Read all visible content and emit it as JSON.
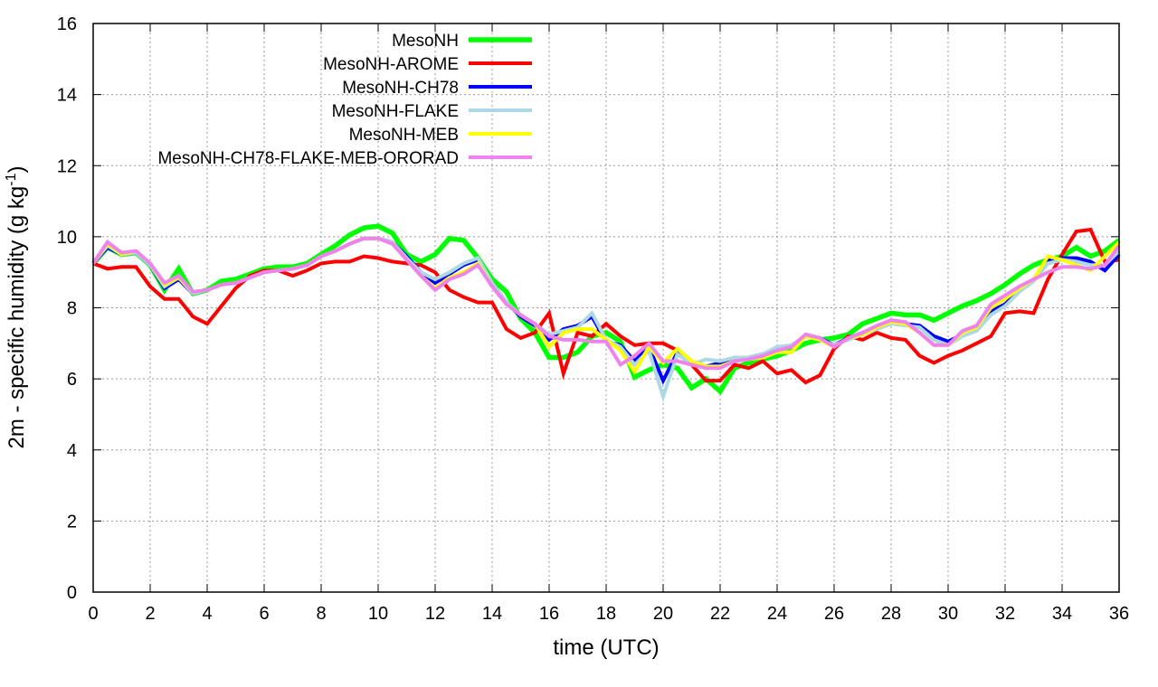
{
  "chart_data": {
    "type": "line",
    "title": "",
    "xlabel": "time (UTC)",
    "ylabel": {
      "main": "2m - specific humidity (g kg",
      "sup": "-1",
      "end": ")"
    },
    "xlim": [
      0,
      36
    ],
    "ylim": [
      0,
      16
    ],
    "xticks": [
      0,
      2,
      4,
      6,
      8,
      10,
      12,
      14,
      16,
      18,
      20,
      22,
      24,
      26,
      28,
      30,
      32,
      34,
      36
    ],
    "yticks": [
      0,
      2,
      4,
      6,
      8,
      10,
      12,
      14,
      16
    ],
    "grid": true,
    "legend_placement": "top-left",
    "x_start": 0,
    "x_step": 0.5,
    "series": [
      {
        "name": "MesoNH",
        "color": "#00ff00",
        "values": [
          9.25,
          9.7,
          9.5,
          9.55,
          9.2,
          8.5,
          9.1,
          8.4,
          8.5,
          8.75,
          8.8,
          8.95,
          9.1,
          9.15,
          9.15,
          9.25,
          9.5,
          9.75,
          10.05,
          10.25,
          10.3,
          10.1,
          9.5,
          9.3,
          9.5,
          9.95,
          9.9,
          9.4,
          8.8,
          8.45,
          7.7,
          7.3,
          6.6,
          6.6,
          6.75,
          7.2,
          7.3,
          7.05,
          6.05,
          6.25,
          6.4,
          6.3,
          5.75,
          6.0,
          5.65,
          6.3,
          6.45,
          6.55,
          6.65,
          6.8,
          7.0,
          7.1,
          7.15,
          7.25,
          7.55,
          7.7,
          7.85,
          7.8,
          7.8,
          7.65,
          7.85,
          8.05,
          8.2,
          8.4,
          8.65,
          8.95,
          9.2,
          9.35,
          9.45,
          9.7,
          9.45,
          9.6,
          9.9
        ]
      },
      {
        "name": "MesoNH-AROME",
        "color": "#ff0000",
        "values": [
          9.25,
          9.1,
          9.15,
          9.15,
          8.6,
          8.25,
          8.25,
          7.75,
          7.55,
          8.05,
          8.55,
          8.9,
          9.05,
          9.05,
          8.9,
          9.05,
          9.25,
          9.3,
          9.3,
          9.45,
          9.4,
          9.3,
          9.25,
          9.2,
          9.0,
          8.5,
          8.3,
          8.15,
          8.15,
          7.4,
          7.15,
          7.3,
          7.85,
          6.15,
          7.3,
          7.2,
          7.55,
          7.2,
          6.95,
          7.0,
          7.0,
          6.8,
          6.4,
          5.95,
          5.95,
          6.4,
          6.3,
          6.5,
          6.15,
          6.25,
          5.9,
          6.1,
          6.85,
          7.2,
          7.1,
          7.3,
          7.15,
          7.1,
          6.65,
          6.45,
          6.65,
          6.8,
          7.0,
          7.2,
          7.85,
          7.9,
          7.85,
          8.8,
          9.5,
          10.15,
          10.2,
          9.3,
          9.35
        ]
      },
      {
        "name": "MesoNH-CH78",
        "color": "#0000ff",
        "values": [
          9.25,
          9.7,
          9.5,
          9.55,
          9.2,
          8.55,
          8.8,
          8.4,
          8.5,
          8.65,
          8.7,
          8.85,
          9.0,
          9.05,
          9.1,
          9.2,
          9.45,
          9.6,
          9.8,
          9.95,
          9.95,
          9.85,
          9.45,
          9.0,
          8.7,
          8.95,
          9.2,
          9.35,
          8.7,
          8.15,
          7.75,
          7.5,
          7.1,
          7.4,
          7.5,
          7.75,
          7.05,
          6.95,
          6.5,
          6.9,
          5.95,
          6.75,
          6.4,
          6.35,
          6.45,
          6.6,
          6.6,
          6.7,
          6.85,
          6.9,
          7.2,
          7.15,
          6.95,
          7.15,
          7.3,
          7.45,
          7.6,
          7.55,
          7.5,
          7.2,
          7.05,
          7.25,
          7.4,
          7.9,
          8.1,
          8.5,
          8.8,
          9.35,
          9.4,
          9.4,
          9.3,
          9.05,
          9.5
        ]
      },
      {
        "name": "MesoNH-FLAKE",
        "color": "#add8e6",
        "values": [
          9.25,
          9.75,
          9.5,
          9.55,
          9.2,
          8.6,
          8.85,
          8.4,
          8.5,
          8.65,
          8.7,
          8.85,
          9.0,
          9.05,
          9.1,
          9.2,
          9.45,
          9.6,
          9.8,
          9.95,
          9.95,
          9.85,
          9.4,
          9.0,
          8.8,
          9.0,
          9.25,
          9.4,
          8.7,
          8.15,
          7.8,
          7.55,
          7.25,
          7.35,
          7.45,
          7.85,
          7.1,
          6.9,
          6.4,
          6.8,
          5.5,
          6.7,
          6.4,
          6.55,
          6.5,
          6.6,
          6.6,
          6.7,
          6.9,
          6.95,
          7.2,
          7.1,
          6.95,
          7.1,
          7.25,
          7.4,
          7.55,
          7.5,
          7.45,
          7.1,
          6.95,
          7.2,
          7.35,
          7.8,
          8.05,
          8.45,
          8.75,
          9.25,
          9.35,
          9.3,
          9.2,
          9.2,
          9.6
        ]
      },
      {
        "name": "MesoNH-MEB",
        "color": "#ffff00",
        "values": [
          9.25,
          9.8,
          9.5,
          9.6,
          9.25,
          8.65,
          8.85,
          8.45,
          8.5,
          8.65,
          8.7,
          8.85,
          9.0,
          9.05,
          9.1,
          9.2,
          9.45,
          9.6,
          9.8,
          9.95,
          9.95,
          9.8,
          9.35,
          8.9,
          8.55,
          8.85,
          9.0,
          9.25,
          8.6,
          8.1,
          7.8,
          7.55,
          6.9,
          7.3,
          7.4,
          7.4,
          7.1,
          6.8,
          6.2,
          6.9,
          6.45,
          6.85,
          6.5,
          6.35,
          6.35,
          6.5,
          6.55,
          6.6,
          6.75,
          6.75,
          7.2,
          7.1,
          6.9,
          7.15,
          7.25,
          7.45,
          7.6,
          7.55,
          7.3,
          6.95,
          6.95,
          7.3,
          7.45,
          8.0,
          8.25,
          8.55,
          8.8,
          9.45,
          9.35,
          9.2,
          9.05,
          9.45,
          9.85
        ]
      },
      {
        "name": "MesoNH-CH78-FLAKE-MEB-ORORAD",
        "color": "#ee82ee",
        "values": [
          9.25,
          9.85,
          9.55,
          9.6,
          9.25,
          8.7,
          8.9,
          8.45,
          8.5,
          8.65,
          8.7,
          8.85,
          9.0,
          9.05,
          9.1,
          9.2,
          9.45,
          9.6,
          9.8,
          9.95,
          9.95,
          9.8,
          9.35,
          8.9,
          8.5,
          8.8,
          8.95,
          9.2,
          8.6,
          8.1,
          7.8,
          7.55,
          7.2,
          7.1,
          7.1,
          7.05,
          7.05,
          6.4,
          6.65,
          7.0,
          6.5,
          6.5,
          6.4,
          6.3,
          6.3,
          6.5,
          6.55,
          6.65,
          6.8,
          6.9,
          7.25,
          7.15,
          6.9,
          7.15,
          7.3,
          7.5,
          7.65,
          7.6,
          7.3,
          6.95,
          6.95,
          7.35,
          7.5,
          8.1,
          8.35,
          8.6,
          8.8,
          9.0,
          9.15,
          9.15,
          9.1,
          9.2,
          9.75
        ]
      }
    ]
  }
}
